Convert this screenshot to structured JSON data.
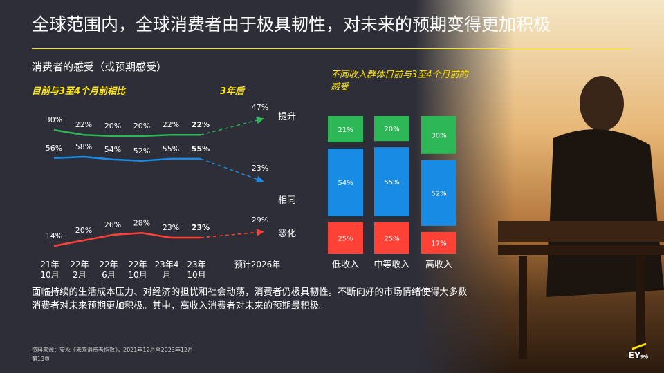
{
  "slide": {
    "title": "全球范围内，全球消费者由于极具韧性，对未来的预期变得更加积极",
    "subtitle": "消费者的感受（或预期感受）",
    "left_label_current": "目前与3至4个月前相比",
    "left_label_future": "3年后",
    "right_title": "不同收入群体目前与3至4个月前的感受",
    "paragraph": "面临持续的生活成本压力、对经济的担忧和社会动荡，消费者仍极具韧性。不断向好的市场情绪使得大多数消费者对未来预期更加积极。其中，高收入消费者对未来的预期最积极。",
    "source_line1": "资料来源：安永《未来消费者指数》，2021年12月至2023年12月",
    "source_line2": "第13页",
    "logo_text": "EY",
    "logo_sub": "安永",
    "colors": {
      "background": "#2e2e38",
      "accent": "#ffe600",
      "green": "#2db757",
      "blue": "#188ce5",
      "red": "#ff4136"
    }
  },
  "chart_data": [
    {
      "type": "line",
      "categories": [
        [
          "21年",
          "10月"
        ],
        [
          "22年",
          "2月"
        ],
        [
          "22年",
          "6月"
        ],
        [
          "22年",
          "10月"
        ],
        [
          "23年4",
          "月"
        ],
        [
          "23年",
          "10月"
        ]
      ],
      "forecast_label": "预计2026年",
      "series": [
        {
          "name": "提升",
          "color": "#2db757",
          "values": [
            30,
            22,
            20,
            20,
            22,
            22
          ],
          "forecast": 47
        },
        {
          "name": "相同",
          "color": "#188ce5",
          "values": [
            56,
            58,
            54,
            52,
            55,
            55
          ],
          "forecast": 23
        },
        {
          "name": "恶化",
          "color": "#ff4136",
          "values": [
            14,
            20,
            26,
            28,
            23,
            23
          ],
          "forecast": 29
        }
      ],
      "value_suffix": "%"
    },
    {
      "type": "bar",
      "stacked": true,
      "categories": [
        "低收入",
        "中等收入",
        "高收入"
      ],
      "series": [
        {
          "name": "提升",
          "color": "#2db757",
          "values": [
            21,
            20,
            30
          ]
        },
        {
          "name": "相同",
          "color": "#188ce5",
          "values": [
            54,
            55,
            52
          ]
        },
        {
          "name": "恶化",
          "color": "#ff4136",
          "values": [
            25,
            25,
            17
          ]
        }
      ],
      "value_suffix": "%"
    }
  ]
}
